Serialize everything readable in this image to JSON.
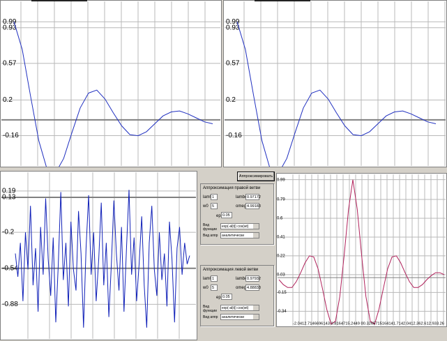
{
  "plots": [
    {
      "type": "line",
      "color": "#2030c0",
      "ylim": [
        -0.48,
        1.21
      ],
      "yticks": [
        0.99,
        0.93,
        0.57,
        0.2,
        -0.16
      ],
      "values": [
        0.99,
        0.71,
        0.24,
        -0.21,
        -0.5,
        -0.54,
        -0.39,
        -0.13,
        0.12,
        0.27,
        0.3,
        0.21,
        0.07,
        -0.06,
        -0.15,
        -0.16,
        -0.12,
        -0.04,
        0.04,
        0.08,
        0.09,
        0.06,
        0.02,
        -0.02,
        -0.04
      ]
    },
    {
      "type": "line",
      "color": "#2030c0",
      "ylim": [
        -0.48,
        1.21
      ],
      "yticks": [
        0.99,
        0.93,
        0.57,
        0.2,
        -0.16
      ],
      "values": [
        0.99,
        0.71,
        0.24,
        -0.21,
        -0.5,
        -0.54,
        -0.39,
        -0.13,
        0.12,
        0.27,
        0.3,
        0.21,
        0.07,
        -0.06,
        -0.15,
        -0.16,
        -0.12,
        -0.04,
        0.04,
        0.08,
        0.09,
        0.06,
        0.02,
        -0.02,
        -0.04
      ]
    },
    {
      "type": "line",
      "color": "#1020b8",
      "ylim": [
        -1.2,
        0.38
      ],
      "yticks": [
        0.19,
        0.13,
        -0.2,
        -0.54,
        -0.88
      ],
      "values": [
        -0.4,
        -0.62,
        -0.3,
        -0.85,
        -0.2,
        -0.55,
        0.05,
        -0.7,
        -0.35,
        -0.95,
        -0.15,
        -0.6,
        0.12,
        -0.45,
        -0.8,
        -0.25,
        -1.05,
        -0.5,
        0.18,
        -0.65,
        -0.3,
        -0.9,
        -0.1,
        -0.55,
        -0.75,
        0.0,
        -0.4,
        -1.1,
        -0.35,
        0.15,
        -0.6,
        -0.2,
        -0.85,
        -0.45,
        0.08,
        -0.7,
        -0.3,
        -1.0,
        -0.5,
        0.1,
        -0.4,
        -0.75,
        -0.15,
        -0.95,
        -0.35,
        0.2,
        -0.6,
        -0.25,
        -0.85,
        -0.5,
        -0.05,
        -0.7,
        -1.1,
        -0.3,
        0.05,
        -0.55,
        -0.8,
        -0.2,
        -0.65,
        -0.4,
        -0.9,
        -0.1,
        -0.45,
        -1.05,
        -0.35,
        -0.15,
        -0.6,
        -0.3,
        -0.5,
        -0.42
      ]
    },
    {
      "type": "line",
      "color": "#b0205a",
      "ylim": [
        -0.45,
        1.03
      ],
      "yticks": [
        0.99,
        0.79,
        0.6,
        0.41,
        0.22,
        0.03,
        -0.15,
        -0.34
      ],
      "values": [
        -0.02,
        -0.07,
        -0.1,
        -0.1,
        -0.04,
        0.05,
        0.15,
        0.22,
        0.21,
        0.09,
        -0.11,
        -0.32,
        -0.47,
        -0.44,
        -0.19,
        0.23,
        0.69,
        0.99,
        0.69,
        0.23,
        -0.19,
        -0.44,
        -0.47,
        -0.32,
        -0.11,
        0.09,
        0.21,
        0.22,
        0.15,
        0.05,
        -0.04,
        -0.1,
        -0.1,
        -0.07,
        -0.02,
        0.02,
        0.05,
        0.05,
        0.03
      ],
      "x_axis_text": "-2.0412.7146696143 0.8164715.2449 00.3265715164141.7142.0412.362.612.933.26"
    }
  ],
  "form": {
    "button": "Аппроксимировать",
    "groups": [
      {
        "title": "Аппроксимация правой ветви",
        "fields": [
          {
            "label": "lam0",
            "value": "1"
          },
          {
            "label": "lambda",
            "value": "0.97172"
          },
          {
            "label": "w0",
            "value": "5"
          },
          {
            "label": "omega",
            "value": "4.99183"
          },
          {
            "label": "eps",
            "value": "0.05"
          }
        ],
        "function_label": "Вид функции",
        "function": "exp(-al|t|) cos(wt)",
        "method_label": "Вид аппр",
        "method": "аналитически"
      },
      {
        "title": "Аппроксимация левой ветви",
        "fields": [
          {
            "label": "lam0",
            "value": "1"
          },
          {
            "label": "lambda",
            "value": "0.97932"
          },
          {
            "label": "w0",
            "value": "5"
          },
          {
            "label": "omega",
            "value": "4.88833"
          },
          {
            "label": "eps",
            "value": "0.05"
          }
        ],
        "function_label": "Вид функции",
        "function": "exp(-al|t|) cos(wt)",
        "method_label": "Вид аппр",
        "method": "аналитически"
      }
    ]
  }
}
